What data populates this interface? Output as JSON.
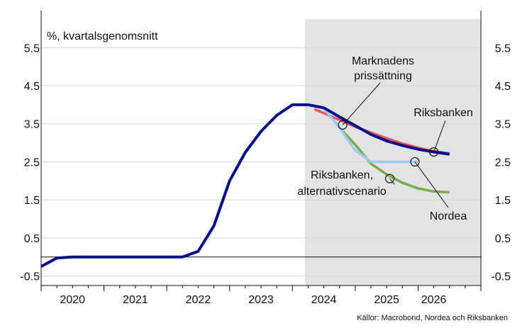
{
  "chart_data": {
    "type": "line",
    "unit_label": "%, kvartalsgenomsnitt",
    "source": "Källor: Macrobond, Nordea och Riksbanken",
    "ylim": [
      -0.75,
      6.25
    ],
    "yticks": [
      "5.5",
      "4.5",
      "3.5",
      "2.5",
      "1.5",
      "0.5",
      "-0.5"
    ],
    "ytick_values": [
      5.5,
      4.5,
      3.5,
      2.5,
      1.5,
      0.5,
      -0.5
    ],
    "xlim": [
      2019.5,
      2026.5
    ],
    "year_labels": [
      "2020",
      "2021",
      "2022",
      "2023",
      "2024",
      "2025",
      "2026"
    ],
    "year_label_x": [
      2020.0,
      2021.0,
      2022.0,
      2023.0,
      2024.0,
      2025.0,
      2025.75
    ],
    "forecast_shading": [
      2023.7,
      2026.5
    ],
    "reference_line_y": 0.0,
    "grid": true,
    "colors": {
      "historical": "#000f8c",
      "market": "#e8555a",
      "riksbanken": "#000f8c",
      "alternative": "#7aab47",
      "nordea": "#9ccaf2",
      "shading": "#e3e3e3",
      "grid": "#d6d6d6"
    },
    "series": [
      {
        "key": "historical",
        "x": [
          2019.5,
          2019.75,
          2020.0,
          2020.25,
          2020.5,
          2020.75,
          2021.0,
          2021.25,
          2021.5,
          2021.75,
          2022.0,
          2022.25,
          2022.5,
          2022.75,
          2023.0,
          2023.25,
          2023.5,
          2023.75
        ],
        "values": [
          -0.25,
          -0.03,
          0.0,
          0.0,
          0.0,
          0.0,
          0.0,
          0.0,
          0.0,
          0.0,
          0.15,
          0.82,
          2.0,
          2.75,
          3.3,
          3.72,
          4.0,
          4.0
        ]
      },
      {
        "key": "market",
        "x": [
          2023.85,
          2024.0,
          2024.25,
          2024.5,
          2024.75,
          2025.0,
          2025.25,
          2025.5,
          2025.75,
          2026.0
        ],
        "values": [
          3.88,
          3.78,
          3.6,
          3.42,
          3.27,
          3.12,
          2.98,
          2.87,
          2.78,
          2.72
        ]
      },
      {
        "key": "alternative",
        "x": [
          2024.0,
          2024.25,
          2024.5,
          2024.75,
          2025.0,
          2025.25,
          2025.5,
          2025.75,
          2026.0
        ],
        "values": [
          3.9,
          3.4,
          2.95,
          2.45,
          2.17,
          1.95,
          1.8,
          1.72,
          1.7
        ]
      },
      {
        "key": "nordea",
        "x": [
          2024.0,
          2024.25,
          2024.5,
          2024.75,
          2025.0,
          2025.25,
          2025.5
        ],
        "values": [
          3.9,
          3.4,
          2.8,
          2.5,
          2.5,
          2.5,
          2.5
        ]
      },
      {
        "key": "riksbanken",
        "x": [
          2023.75,
          2024.0,
          2024.25,
          2024.5,
          2024.75,
          2025.0,
          2025.25,
          2025.5,
          2025.75,
          2026.0
        ],
        "values": [
          4.0,
          3.92,
          3.68,
          3.45,
          3.22,
          3.05,
          2.93,
          2.83,
          2.76,
          2.7
        ]
      }
    ],
    "annotations": {
      "market_line1": "Marknadens",
      "market_line2": "prissättning",
      "riksbanken": "Riksbanken",
      "alt_line1": "Riksbanken,",
      "alt_line2": "alternativscenario",
      "nordea": "Nordea"
    },
    "marker_points": [
      {
        "key": "market",
        "x": 2024.3,
        "y": 3.47
      },
      {
        "key": "riksbanken",
        "x": 2025.75,
        "y": 2.76
      },
      {
        "key": "nordea",
        "x": 2025.45,
        "y": 2.5
      },
      {
        "key": "alternative",
        "x": 2025.05,
        "y": 2.06
      }
    ]
  }
}
